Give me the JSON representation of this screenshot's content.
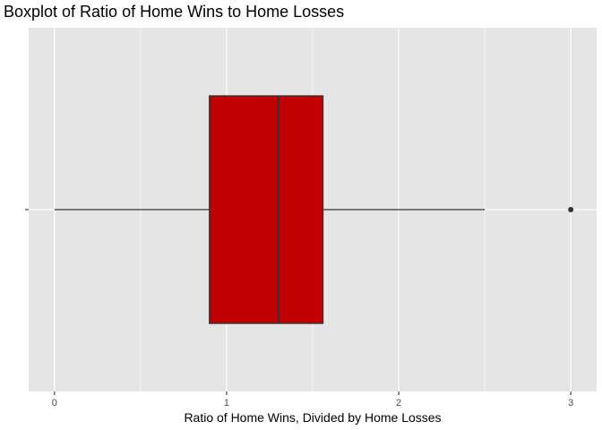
{
  "chart_data": {
    "type": "boxplot",
    "title": "Boxplot of Ratio of Home Wins to Home Losses",
    "xlabel": "Ratio of Home Wins, Divided by Home Losses",
    "ylabel": "",
    "xlim": [
      -0.15,
      3.15
    ],
    "x_ticks": [
      0,
      1,
      2,
      3
    ],
    "x_tick_labels": [
      "0",
      "1",
      "2",
      "3"
    ],
    "grid": true,
    "orientation": "horizontal",
    "box": {
      "whisker_low": 0,
      "q1": 0.9,
      "median": 1.3,
      "q3": 1.56,
      "whisker_high": 2.5,
      "outliers": [
        3
      ]
    },
    "colors": {
      "box_fill": "#c00000",
      "box_stroke": "#333333",
      "panel_background": "#e5e5e5",
      "grid": "#ffffff"
    }
  }
}
